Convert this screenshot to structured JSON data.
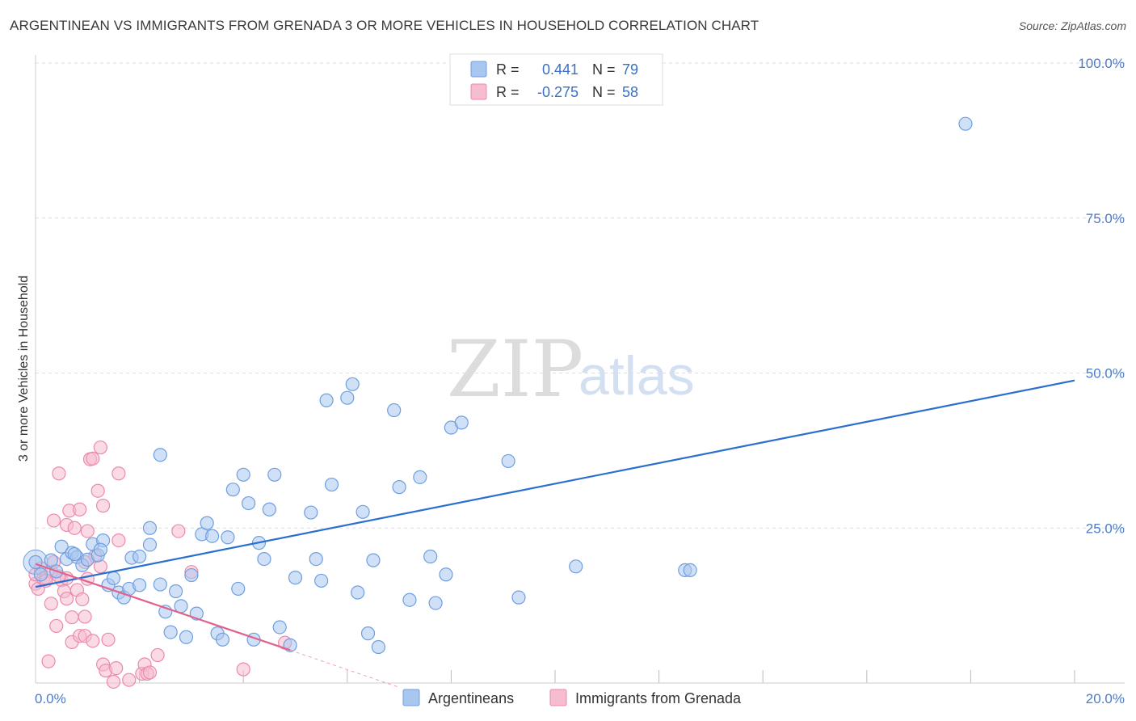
{
  "title": "ARGENTINEAN VS IMMIGRANTS FROM GRENADA 3 OR MORE VEHICLES IN HOUSEHOLD CORRELATION CHART",
  "source": "Source: ZipAtlas.com",
  "watermark": {
    "zip": "ZIP",
    "atlas": "atlas"
  },
  "colors": {
    "blue_fill": "#a9c6ee",
    "blue_stroke": "#6f9fe0",
    "blue_line": "#2a6fd0",
    "pink_fill": "#f6bcd0",
    "pink_stroke": "#ec8aab",
    "pink_line": "#e0628e",
    "grid": "#dddddd",
    "tick_text": "#4a7cc9"
  },
  "stats": {
    "r_label": "R =",
    "n_label": "N =",
    "blue": {
      "r": "0.441",
      "n": "79"
    },
    "pink": {
      "r": "-0.275",
      "n": "58"
    }
  },
  "chart_data": {
    "type": "scatter",
    "title": "ARGENTINEAN VS IMMIGRANTS FROM GRENADA 3 OR MORE VEHICLES IN HOUSEHOLD CORRELATION CHART",
    "xlabel": "",
    "ylabel": "3 or more Vehicles in Household",
    "xlim": [
      0,
      20
    ],
    "ylim": [
      0,
      100
    ],
    "x_tick_labels": [
      "0.0%",
      "20.0%"
    ],
    "y_ticks": [
      25,
      50,
      75,
      100
    ],
    "y_tick_labels": [
      "25.0%",
      "50.0%",
      "75.0%",
      "100.0%"
    ],
    "legend": [
      "Argentineans",
      "Immigrants from Grenada"
    ],
    "series": [
      {
        "name": "Argentineans",
        "color": "#a9c6ee",
        "r": 0.441,
        "n": 79,
        "trend": {
          "x0": 0,
          "y0": 15.5,
          "x1": 20,
          "y1": 48.8
        },
        "points": [
          [
            0.0,
            19.5
          ],
          [
            0.3,
            19.8
          ],
          [
            0.5,
            22.0
          ],
          [
            0.6,
            20.0
          ],
          [
            0.7,
            21.0
          ],
          [
            0.8,
            20.3
          ],
          [
            0.9,
            19.0
          ],
          [
            1.0,
            19.9
          ],
          [
            1.1,
            22.4
          ],
          [
            1.2,
            20.6
          ],
          [
            1.3,
            23.0
          ],
          [
            1.4,
            15.8
          ],
          [
            1.5,
            16.9
          ],
          [
            1.6,
            14.6
          ],
          [
            1.7,
            13.8
          ],
          [
            1.8,
            15.2
          ],
          [
            1.85,
            20.2
          ],
          [
            2.0,
            20.4
          ],
          [
            2.0,
            15.8
          ],
          [
            2.2,
            22.3
          ],
          [
            2.2,
            25.0
          ],
          [
            2.4,
            15.9
          ],
          [
            2.4,
            36.8
          ],
          [
            2.5,
            11.5
          ],
          [
            2.6,
            8.2
          ],
          [
            2.7,
            14.8
          ],
          [
            2.8,
            12.4
          ],
          [
            2.9,
            7.4
          ],
          [
            3.0,
            17.4
          ],
          [
            3.1,
            11.2
          ],
          [
            3.2,
            24.0
          ],
          [
            3.3,
            25.8
          ],
          [
            3.4,
            23.7
          ],
          [
            3.5,
            8.0
          ],
          [
            3.6,
            7.0
          ],
          [
            3.7,
            23.5
          ],
          [
            3.8,
            31.2
          ],
          [
            3.9,
            15.2
          ],
          [
            4.0,
            33.6
          ],
          [
            4.1,
            29.0
          ],
          [
            4.2,
            7.0
          ],
          [
            4.3,
            22.6
          ],
          [
            4.4,
            20.0
          ],
          [
            4.5,
            28.0
          ],
          [
            4.6,
            33.6
          ],
          [
            4.7,
            9.0
          ],
          [
            4.9,
            6.1
          ],
          [
            5.0,
            17.0
          ],
          [
            5.3,
            27.5
          ],
          [
            5.4,
            20.0
          ],
          [
            5.5,
            16.5
          ],
          [
            5.6,
            45.6
          ],
          [
            5.7,
            32.0
          ],
          [
            6.0,
            46.0
          ],
          [
            6.1,
            48.2
          ],
          [
            6.2,
            14.6
          ],
          [
            6.3,
            27.6
          ],
          [
            6.4,
            8.0
          ],
          [
            6.5,
            19.8
          ],
          [
            6.6,
            5.8
          ],
          [
            6.9,
            44.0
          ],
          [
            7.0,
            31.6
          ],
          [
            7.2,
            13.4
          ],
          [
            7.4,
            33.2
          ],
          [
            7.6,
            20.4
          ],
          [
            7.7,
            12.9
          ],
          [
            7.9,
            17.5
          ],
          [
            8.0,
            41.2
          ],
          [
            8.2,
            42.0
          ],
          [
            9.1,
            35.8
          ],
          [
            9.3,
            13.8
          ],
          [
            10.4,
            18.8
          ],
          [
            12.5,
            18.2
          ],
          [
            12.6,
            18.2
          ],
          [
            17.9,
            90.2
          ],
          [
            0.1,
            17.5
          ],
          [
            0.4,
            18.0
          ],
          [
            1.25,
            21.5
          ],
          [
            0.75,
            20.8
          ]
        ]
      },
      {
        "name": "Immigrants from Grenada",
        "color": "#f6bcd0",
        "r": -0.275,
        "n": 58,
        "trend": {
          "x0": 0,
          "y0": 19.2,
          "x1": 4.9,
          "y1": 5.3,
          "dash_to_x": 7.0,
          "dash_to_y": -0.7
        },
        "points": [
          [
            0.0,
            16.0
          ],
          [
            0.0,
            17.5
          ],
          [
            0.05,
            15.2
          ],
          [
            0.1,
            18.5
          ],
          [
            0.15,
            16.8
          ],
          [
            0.2,
            17.0
          ],
          [
            0.25,
            3.5
          ],
          [
            0.3,
            12.8
          ],
          [
            0.3,
            18.0
          ],
          [
            0.35,
            19.5
          ],
          [
            0.35,
            26.2
          ],
          [
            0.4,
            9.2
          ],
          [
            0.45,
            33.8
          ],
          [
            0.5,
            16.6
          ],
          [
            0.55,
            14.8
          ],
          [
            0.6,
            16.9
          ],
          [
            0.6,
            13.6
          ],
          [
            0.6,
            25.5
          ],
          [
            0.65,
            27.8
          ],
          [
            0.7,
            10.6
          ],
          [
            0.7,
            6.6
          ],
          [
            0.75,
            25.0
          ],
          [
            0.8,
            15.0
          ],
          [
            0.85,
            7.6
          ],
          [
            0.85,
            28.0
          ],
          [
            0.9,
            13.5
          ],
          [
            0.95,
            10.7
          ],
          [
            0.95,
            19.5
          ],
          [
            0.95,
            7.6
          ],
          [
            1.0,
            24.5
          ],
          [
            1.0,
            16.8
          ],
          [
            1.05,
            36.1
          ],
          [
            1.1,
            36.2
          ],
          [
            1.15,
            20.5
          ],
          [
            1.1,
            6.8
          ],
          [
            1.2,
            31.0
          ],
          [
            1.25,
            18.8
          ],
          [
            1.25,
            38.0
          ],
          [
            1.3,
            28.6
          ],
          [
            1.3,
            3.0
          ],
          [
            1.35,
            2.0
          ],
          [
            1.4,
            7.0
          ],
          [
            1.5,
            0.2
          ],
          [
            1.55,
            2.4
          ],
          [
            1.6,
            33.8
          ],
          [
            1.6,
            23.0
          ],
          [
            1.8,
            0.5
          ],
          [
            2.05,
            1.5
          ],
          [
            2.1,
            3.0
          ],
          [
            2.15,
            1.5
          ],
          [
            2.2,
            1.7
          ],
          [
            2.35,
            4.5
          ],
          [
            2.75,
            24.5
          ],
          [
            3.0,
            17.9
          ],
          [
            4.0,
            2.2
          ],
          [
            4.8,
            6.5
          ],
          [
            0.2,
            16.5
          ],
          [
            0.45,
            17.2
          ]
        ]
      }
    ]
  }
}
